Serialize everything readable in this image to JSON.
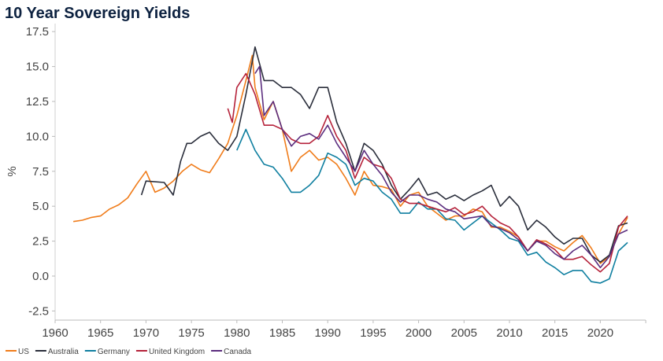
{
  "chart_data": {
    "type": "line",
    "title": "10 Year Sovereign Yields",
    "xlabel": "",
    "ylabel": "%",
    "xlim": [
      1960,
      2025
    ],
    "ylim": [
      -2.5,
      17.5
    ],
    "x_ticks": [
      "1960",
      "1965",
      "1970",
      "1975",
      "1980",
      "1985",
      "1990",
      "1995",
      "2000",
      "2005",
      "2010",
      "2015",
      "2020"
    ],
    "y_ticks": [
      "-2.5",
      "0.0",
      "2.5",
      "5.0",
      "7.5",
      "10.0",
      "12.5",
      "15.0",
      "17.5"
    ],
    "legend_position": "bottom-left",
    "grid": false,
    "series": [
      {
        "name": "US",
        "color": "#f07c1a",
        "points": [
          [
            1962,
            3.9
          ],
          [
            1963,
            4.0
          ],
          [
            1964,
            4.2
          ],
          [
            1965,
            4.3
          ],
          [
            1966,
            4.8
          ],
          [
            1967,
            5.1
          ],
          [
            1968,
            5.6
          ],
          [
            1969,
            6.6
          ],
          [
            1970,
            7.5
          ],
          [
            1971,
            6.0
          ],
          [
            1972,
            6.3
          ],
          [
            1973,
            6.8
          ],
          [
            1974,
            7.5
          ],
          [
            1975,
            8.0
          ],
          [
            1976,
            7.6
          ],
          [
            1977,
            7.4
          ],
          [
            1978,
            8.4
          ],
          [
            1979,
            9.5
          ],
          [
            1980,
            11.5
          ],
          [
            1981,
            14.0
          ],
          [
            1981.7,
            15.8
          ],
          [
            1982,
            13.5
          ],
          [
            1983,
            11.2
          ],
          [
            1984,
            12.5
          ],
          [
            1985,
            10.5
          ],
          [
            1986,
            7.5
          ],
          [
            1987,
            8.5
          ],
          [
            1988,
            9.0
          ],
          [
            1989,
            8.3
          ],
          [
            1990,
            8.5
          ],
          [
            1991,
            8.0
          ],
          [
            1992,
            7.0
          ],
          [
            1993,
            5.8
          ],
          [
            1994,
            7.5
          ],
          [
            1995,
            6.5
          ],
          [
            1996,
            6.4
          ],
          [
            1997,
            6.2
          ],
          [
            1998,
            5.0
          ],
          [
            1999,
            5.8
          ],
          [
            2000,
            6.0
          ],
          [
            2001,
            5.0
          ],
          [
            2002,
            4.5
          ],
          [
            2003,
            4.0
          ],
          [
            2004,
            4.3
          ],
          [
            2005,
            4.3
          ],
          [
            2006,
            4.8
          ],
          [
            2007,
            4.6
          ],
          [
            2008,
            3.5
          ],
          [
            2009,
            3.5
          ],
          [
            2010,
            3.2
          ],
          [
            2011,
            2.8
          ],
          [
            2012,
            1.8
          ],
          [
            2013,
            2.5
          ],
          [
            2014,
            2.5
          ],
          [
            2015,
            2.1
          ],
          [
            2016,
            1.8
          ],
          [
            2017,
            2.4
          ],
          [
            2018,
            2.9
          ],
          [
            2019,
            2.0
          ],
          [
            2020,
            0.9
          ],
          [
            2021,
            1.4
          ],
          [
            2022,
            3.0
          ],
          [
            2023,
            4.2
          ]
        ]
      },
      {
        "name": "Australia",
        "color": "#2a2e3b",
        "points": [
          [
            1969.5,
            5.8
          ],
          [
            1970,
            6.8
          ],
          [
            1972,
            6.7
          ],
          [
            1973,
            5.8
          ],
          [
            1973.8,
            8.2
          ],
          [
            1974.5,
            9.5
          ],
          [
            1975,
            9.5
          ],
          [
            1976,
            10.0
          ],
          [
            1977,
            10.3
          ],
          [
            1978,
            9.5
          ],
          [
            1979,
            9.0
          ],
          [
            1980,
            10.0
          ],
          [
            1981,
            13.0
          ],
          [
            1982,
            16.4
          ],
          [
            1983,
            14.0
          ],
          [
            1984,
            14.0
          ],
          [
            1985,
            13.5
          ],
          [
            1986,
            13.5
          ],
          [
            1987,
            13.0
          ],
          [
            1988,
            12.0
          ],
          [
            1989,
            13.5
          ],
          [
            1990,
            13.5
          ],
          [
            1991,
            11.0
          ],
          [
            1992,
            9.5
          ],
          [
            1993,
            7.5
          ],
          [
            1994,
            9.5
          ],
          [
            1995,
            9.0
          ],
          [
            1996,
            8.0
          ],
          [
            1997,
            6.5
          ],
          [
            1998,
            5.5
          ],
          [
            1999,
            6.2
          ],
          [
            2000,
            7.0
          ],
          [
            2001,
            5.8
          ],
          [
            2002,
            6.0
          ],
          [
            2003,
            5.5
          ],
          [
            2004,
            5.8
          ],
          [
            2005,
            5.4
          ],
          [
            2006,
            5.8
          ],
          [
            2007,
            6.1
          ],
          [
            2008,
            6.5
          ],
          [
            2009,
            5.0
          ],
          [
            2010,
            5.7
          ],
          [
            2011,
            5.0
          ],
          [
            2012,
            3.3
          ],
          [
            2013,
            4.0
          ],
          [
            2014,
            3.5
          ],
          [
            2015,
            2.8
          ],
          [
            2016,
            2.3
          ],
          [
            2017,
            2.7
          ],
          [
            2018,
            2.7
          ],
          [
            2019,
            1.5
          ],
          [
            2020,
            1.0
          ],
          [
            2021,
            1.5
          ],
          [
            2022,
            3.6
          ],
          [
            2023,
            3.8
          ]
        ]
      },
      {
        "name": "Germany",
        "color": "#0f7fa0",
        "points": [
          [
            1980,
            9.0
          ],
          [
            1981,
            10.5
          ],
          [
            1982,
            9.0
          ],
          [
            1983,
            8.0
          ],
          [
            1984,
            7.8
          ],
          [
            1985,
            7.0
          ],
          [
            1986,
            6.0
          ],
          [
            1987,
            6.0
          ],
          [
            1988,
            6.5
          ],
          [
            1989,
            7.2
          ],
          [
            1990,
            8.8
          ],
          [
            1991,
            8.5
          ],
          [
            1992,
            8.0
          ],
          [
            1993,
            6.5
          ],
          [
            1994,
            7.0
          ],
          [
            1995,
            6.8
          ],
          [
            1996,
            6.0
          ],
          [
            1997,
            5.5
          ],
          [
            1998,
            4.5
          ],
          [
            1999,
            4.5
          ],
          [
            2000,
            5.3
          ],
          [
            2001,
            4.8
          ],
          [
            2002,
            4.8
          ],
          [
            2003,
            4.1
          ],
          [
            2004,
            4.0
          ],
          [
            2005,
            3.3
          ],
          [
            2006,
            3.8
          ],
          [
            2007,
            4.3
          ],
          [
            2008,
            3.8
          ],
          [
            2009,
            3.3
          ],
          [
            2010,
            2.7
          ],
          [
            2011,
            2.5
          ],
          [
            2012,
            1.5
          ],
          [
            2013,
            1.7
          ],
          [
            2014,
            1.0
          ],
          [
            2015,
            0.6
          ],
          [
            2016,
            0.1
          ],
          [
            2017,
            0.4
          ],
          [
            2018,
            0.4
          ],
          [
            2019,
            -0.4
          ],
          [
            2020,
            -0.5
          ],
          [
            2021,
            -0.2
          ],
          [
            2022,
            1.8
          ],
          [
            2023,
            2.4
          ]
        ]
      },
      {
        "name": "United Kingdom",
        "color": "#b5223a",
        "points": [
          [
            1979,
            12.0
          ],
          [
            1979.5,
            11.0
          ],
          [
            1980,
            13.5
          ],
          [
            1981,
            14.5
          ],
          [
            1982,
            13.0
          ],
          [
            1983,
            10.8
          ],
          [
            1984,
            10.8
          ],
          [
            1985,
            10.5
          ],
          [
            1986,
            9.8
          ],
          [
            1987,
            9.5
          ],
          [
            1988,
            9.5
          ],
          [
            1989,
            10.0
          ],
          [
            1990,
            11.5
          ],
          [
            1991,
            10.0
          ],
          [
            1992,
            9.0
          ],
          [
            1993,
            7.0
          ],
          [
            1994,
            8.5
          ],
          [
            1995,
            8.0
          ],
          [
            1996,
            7.8
          ],
          [
            1997,
            7.0
          ],
          [
            1998,
            5.5
          ],
          [
            1999,
            5.2
          ],
          [
            2000,
            5.2
          ],
          [
            2001,
            5.0
          ],
          [
            2002,
            4.8
          ],
          [
            2003,
            4.6
          ],
          [
            2004,
            4.9
          ],
          [
            2005,
            4.4
          ],
          [
            2006,
            4.6
          ],
          [
            2007,
            5.0
          ],
          [
            2008,
            4.3
          ],
          [
            2009,
            3.8
          ],
          [
            2010,
            3.5
          ],
          [
            2011,
            2.8
          ],
          [
            2012,
            1.8
          ],
          [
            2013,
            2.6
          ],
          [
            2014,
            2.3
          ],
          [
            2015,
            1.9
          ],
          [
            2016,
            1.2
          ],
          [
            2017,
            1.2
          ],
          [
            2018,
            1.4
          ],
          [
            2019,
            0.8
          ],
          [
            2020,
            0.3
          ],
          [
            2021,
            0.9
          ],
          [
            2022,
            3.5
          ],
          [
            2023,
            4.3
          ]
        ]
      },
      {
        "name": "Canada",
        "color": "#5b2d7e",
        "points": [
          [
            1982,
            14.5
          ],
          [
            1982.5,
            15.0
          ],
          [
            1983,
            11.5
          ],
          [
            1984,
            12.5
          ],
          [
            1985,
            10.5
          ],
          [
            1986,
            9.3
          ],
          [
            1987,
            10.0
          ],
          [
            1988,
            10.2
          ],
          [
            1989,
            9.8
          ],
          [
            1990,
            10.8
          ],
          [
            1991,
            9.5
          ],
          [
            1992,
            8.5
          ],
          [
            1993,
            7.5
          ],
          [
            1994,
            9.0
          ],
          [
            1995,
            8.0
          ],
          [
            1996,
            7.2
          ],
          [
            1997,
            6.0
          ],
          [
            1998,
            5.3
          ],
          [
            1999,
            5.8
          ],
          [
            2000,
            5.8
          ],
          [
            2001,
            5.5
          ],
          [
            2002,
            5.3
          ],
          [
            2003,
            4.8
          ],
          [
            2004,
            4.6
          ],
          [
            2005,
            4.1
          ],
          [
            2006,
            4.2
          ],
          [
            2007,
            4.3
          ],
          [
            2008,
            3.6
          ],
          [
            2009,
            3.4
          ],
          [
            2010,
            3.1
          ],
          [
            2011,
            2.6
          ],
          [
            2012,
            1.8
          ],
          [
            2013,
            2.5
          ],
          [
            2014,
            2.2
          ],
          [
            2015,
            1.6
          ],
          [
            2016,
            1.2
          ],
          [
            2017,
            1.8
          ],
          [
            2018,
            2.2
          ],
          [
            2019,
            1.5
          ],
          [
            2020,
            0.6
          ],
          [
            2021,
            1.4
          ],
          [
            2022,
            3.0
          ],
          [
            2023,
            3.3
          ]
        ]
      }
    ]
  }
}
